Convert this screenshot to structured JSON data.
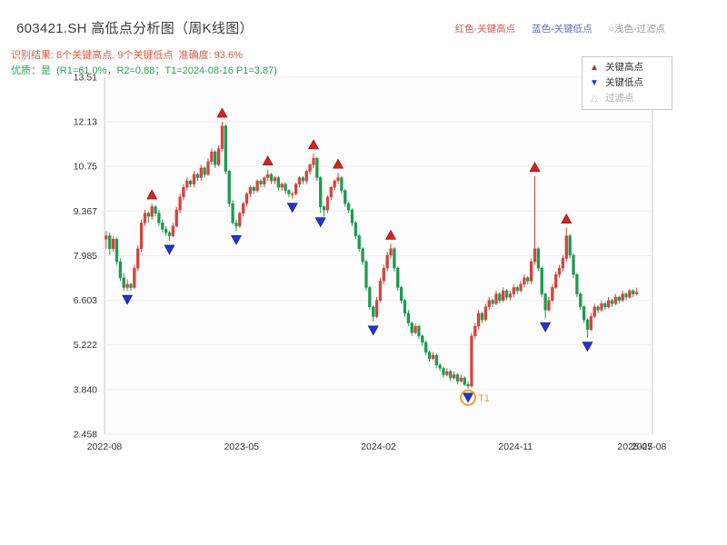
{
  "header": {
    "title": "603421.SH 高低点分析图（周K线图）",
    "legend_top": [
      {
        "label": "红色-关键高点",
        "color": "#d9534f"
      },
      {
        "label": "蓝色-关键低点",
        "color": "#5b6fc0"
      },
      {
        "label": "○浅色-过滤点",
        "color": "#999999"
      }
    ],
    "result_line": "识别结果: 8个关键高点, 9个关键低点  准确度: 93.6%",
    "result_color": "#e0593f",
    "quality_line": "优质：是  (R1=61.0%，R2=0.88；T1=2024-08-16 P1=3.87)",
    "quality_color": "#2ba14f"
  },
  "legend_box": {
    "items": [
      {
        "label": "关键高点",
        "marker": "▲",
        "color": "#d62421"
      },
      {
        "label": "关键低点",
        "marker": "▼",
        "color": "#2435cf"
      },
      {
        "label": "过滤点",
        "marker": "△",
        "color": "#bbbbbb"
      }
    ]
  },
  "chart_data": {
    "type": "candlestick",
    "title": "603421.SH 高低点分析图（周K线图）",
    "ylim": [
      2.458,
      13.51
    ],
    "xlim": [
      0,
      156
    ],
    "grid": "horizontal-faint",
    "y_ticks": [
      {
        "value": 13.51,
        "label": "13.51"
      },
      {
        "value": 12.13,
        "label": "12.13"
      },
      {
        "value": 10.75,
        "label": "10.75"
      },
      {
        "value": 9.367,
        "label": "9.367"
      },
      {
        "value": 7.985,
        "label": "7.985"
      },
      {
        "value": 6.603,
        "label": "6.603"
      },
      {
        "value": 5.222,
        "label": "5.222"
      },
      {
        "value": 3.84,
        "label": "3.840"
      },
      {
        "value": 2.458,
        "label": "2.458"
      }
    ],
    "x_ticks": [
      {
        "week": 0,
        "label": "2022-08"
      },
      {
        "week": 39,
        "label": "2023-05"
      },
      {
        "week": 78,
        "label": "2024-02"
      },
      {
        "week": 117,
        "label": "2024-11"
      },
      {
        "week": 151,
        "label": "2025-07"
      },
      {
        "week": 155,
        "label": "2025-08"
      }
    ],
    "colors": {
      "up": "#d8423c",
      "down": "#1d9a50",
      "high_marker": "#d62421",
      "low_marker": "#2435cf",
      "t1": "#f0a028"
    },
    "candles": [
      [
        8.5,
        8.75,
        8.2,
        8.6
      ],
      [
        8.6,
        8.7,
        8.0,
        8.2
      ],
      [
        8.2,
        8.6,
        8.1,
        8.5
      ],
      [
        8.5,
        8.55,
        7.7,
        7.8
      ],
      [
        7.8,
        7.9,
        7.2,
        7.3
      ],
      [
        7.3,
        7.45,
        6.9,
        7.0
      ],
      [
        7.0,
        7.25,
        6.9,
        7.1
      ],
      [
        7.1,
        7.15,
        6.9,
        7.0
      ],
      [
        7.0,
        7.7,
        6.95,
        7.6
      ],
      [
        7.6,
        8.3,
        7.5,
        8.2
      ],
      [
        8.2,
        9.1,
        8.1,
        9.0
      ],
      [
        9.0,
        9.4,
        8.9,
        9.3
      ],
      [
        9.3,
        9.35,
        9.0,
        9.2
      ],
      [
        9.2,
        9.6,
        9.1,
        9.5
      ],
      [
        9.5,
        9.55,
        9.2,
        9.3
      ],
      [
        9.3,
        9.4,
        8.9,
        9.0
      ],
      [
        9.0,
        9.1,
        8.7,
        8.8
      ],
      [
        8.8,
        8.9,
        8.6,
        8.7
      ],
      [
        8.7,
        8.75,
        8.45,
        8.6
      ],
      [
        8.6,
        9.0,
        8.55,
        8.9
      ],
      [
        8.9,
        9.5,
        8.85,
        9.4
      ],
      [
        9.4,
        9.9,
        9.3,
        9.8
      ],
      [
        9.8,
        10.2,
        9.7,
        10.1
      ],
      [
        10.1,
        10.4,
        10.0,
        10.3
      ],
      [
        10.3,
        10.35,
        10.1,
        10.2
      ],
      [
        10.2,
        10.6,
        10.1,
        10.5
      ],
      [
        10.5,
        10.55,
        10.3,
        10.4
      ],
      [
        10.4,
        10.8,
        10.3,
        10.7
      ],
      [
        10.7,
        10.75,
        10.4,
        10.5
      ],
      [
        10.5,
        11.0,
        10.45,
        10.9
      ],
      [
        10.9,
        11.3,
        10.8,
        11.2
      ],
      [
        11.2,
        11.25,
        10.7,
        10.8
      ],
      [
        10.8,
        11.4,
        10.75,
        11.3
      ],
      [
        11.3,
        12.13,
        11.2,
        12.0
      ],
      [
        12.0,
        12.05,
        10.5,
        10.6
      ],
      [
        10.6,
        10.65,
        9.5,
        9.6
      ],
      [
        9.6,
        9.7,
        8.95,
        9.0
      ],
      [
        9.0,
        9.1,
        8.75,
        8.9
      ],
      [
        8.9,
        9.35,
        8.85,
        9.3
      ],
      [
        9.3,
        9.65,
        9.2,
        9.6
      ],
      [
        9.6,
        9.95,
        9.5,
        9.9
      ],
      [
        9.9,
        10.15,
        9.8,
        10.1
      ],
      [
        10.1,
        10.15,
        9.9,
        10.0
      ],
      [
        10.0,
        10.35,
        9.95,
        10.3
      ],
      [
        10.3,
        10.35,
        10.1,
        10.2
      ],
      [
        10.2,
        10.45,
        10.1,
        10.4
      ],
      [
        10.4,
        10.65,
        10.3,
        10.5
      ],
      [
        10.5,
        10.55,
        10.2,
        10.3
      ],
      [
        10.3,
        10.45,
        10.2,
        10.4
      ],
      [
        10.4,
        10.45,
        10.0,
        10.1
      ],
      [
        10.1,
        10.25,
        10.0,
        10.2
      ],
      [
        10.2,
        10.25,
        9.9,
        10.0
      ],
      [
        10.0,
        10.05,
        9.8,
        9.9
      ],
      [
        9.9,
        9.95,
        9.75,
        9.9
      ],
      [
        9.9,
        10.25,
        9.85,
        10.2
      ],
      [
        10.2,
        10.45,
        10.1,
        10.4
      ],
      [
        10.4,
        10.45,
        10.2,
        10.3
      ],
      [
        10.3,
        10.65,
        10.2,
        10.6
      ],
      [
        10.6,
        10.85,
        10.5,
        10.8
      ],
      [
        10.8,
        11.15,
        10.7,
        11.0
      ],
      [
        11.0,
        11.05,
        10.3,
        10.4
      ],
      [
        10.4,
        10.45,
        9.3,
        9.5
      ],
      [
        9.5,
        9.55,
        9.2,
        9.4
      ],
      [
        9.4,
        9.85,
        9.3,
        9.8
      ],
      [
        9.8,
        10.15,
        9.7,
        10.1
      ],
      [
        10.1,
        10.35,
        10.0,
        10.3
      ],
      [
        10.3,
        10.55,
        10.2,
        10.4
      ],
      [
        10.4,
        10.45,
        9.9,
        10.0
      ],
      [
        10.0,
        10.05,
        9.5,
        9.6
      ],
      [
        9.6,
        9.65,
        9.3,
        9.4
      ],
      [
        9.4,
        9.45,
        8.9,
        9.0
      ],
      [
        9.0,
        9.05,
        8.5,
        8.6
      ],
      [
        8.6,
        8.65,
        8.1,
        8.2
      ],
      [
        8.2,
        8.25,
        7.7,
        7.8
      ],
      [
        7.8,
        7.85,
        6.9,
        7.0
      ],
      [
        7.0,
        7.05,
        6.3,
        6.4
      ],
      [
        6.4,
        6.45,
        5.95,
        6.1
      ],
      [
        6.1,
        6.7,
        6.05,
        6.6
      ],
      [
        6.6,
        7.3,
        6.55,
        7.2
      ],
      [
        7.2,
        7.7,
        7.1,
        7.6
      ],
      [
        7.6,
        8.1,
        7.5,
        8.0
      ],
      [
        8.0,
        8.35,
        7.9,
        8.2
      ],
      [
        8.2,
        8.25,
        7.5,
        7.6
      ],
      [
        7.6,
        7.65,
        6.9,
        7.0
      ],
      [
        7.0,
        7.05,
        6.5,
        6.6
      ],
      [
        6.6,
        6.65,
        6.1,
        6.2
      ],
      [
        6.2,
        6.3,
        5.8,
        5.9
      ],
      [
        5.9,
        5.95,
        5.5,
        5.6
      ],
      [
        5.6,
        5.9,
        5.55,
        5.8
      ],
      [
        5.8,
        5.85,
        5.4,
        5.5
      ],
      [
        5.5,
        5.55,
        5.2,
        5.3
      ],
      [
        5.3,
        5.35,
        4.9,
        5.0
      ],
      [
        5.0,
        5.05,
        4.7,
        4.8
      ],
      [
        4.8,
        5.0,
        4.75,
        4.9
      ],
      [
        4.9,
        4.95,
        4.5,
        4.6
      ],
      [
        4.6,
        4.65,
        4.4,
        4.5
      ],
      [
        4.5,
        4.55,
        4.2,
        4.3
      ],
      [
        4.3,
        4.5,
        4.25,
        4.4
      ],
      [
        4.4,
        4.45,
        4.1,
        4.2
      ],
      [
        4.2,
        4.4,
        4.15,
        4.3
      ],
      [
        4.3,
        4.35,
        4.0,
        4.1
      ],
      [
        4.1,
        4.3,
        4.05,
        4.2
      ],
      [
        4.2,
        4.25,
        3.95,
        4.0
      ],
      [
        4.0,
        4.1,
        3.87,
        3.95
      ],
      [
        3.95,
        5.6,
        3.9,
        5.5
      ],
      [
        5.5,
        5.9,
        5.4,
        5.8
      ],
      [
        5.8,
        6.3,
        5.7,
        6.2
      ],
      [
        6.2,
        6.25,
        5.9,
        6.0
      ],
      [
        6.0,
        6.5,
        5.95,
        6.4
      ],
      [
        6.4,
        6.7,
        6.3,
        6.6
      ],
      [
        6.6,
        6.65,
        6.4,
        6.5
      ],
      [
        6.5,
        6.9,
        6.45,
        6.8
      ],
      [
        6.8,
        6.85,
        6.5,
        6.6
      ],
      [
        6.6,
        7.0,
        6.55,
        6.9
      ],
      [
        6.9,
        6.95,
        6.6,
        6.7
      ],
      [
        6.7,
        6.9,
        6.6,
        6.8
      ],
      [
        6.8,
        7.1,
        6.7,
        7.0
      ],
      [
        7.0,
        7.05,
        6.8,
        6.9
      ],
      [
        6.9,
        7.2,
        6.85,
        7.1
      ],
      [
        7.1,
        7.4,
        7.0,
        7.3
      ],
      [
        7.3,
        7.35,
        7.1,
        7.2
      ],
      [
        7.2,
        7.9,
        7.1,
        7.8
      ],
      [
        7.8,
        10.45,
        7.7,
        8.2
      ],
      [
        8.2,
        8.25,
        7.5,
        7.6
      ],
      [
        7.6,
        7.65,
        6.7,
        6.8
      ],
      [
        6.8,
        6.85,
        6.05,
        6.3
      ],
      [
        6.3,
        6.7,
        6.25,
        6.6
      ],
      [
        6.6,
        7.1,
        6.55,
        7.0
      ],
      [
        7.0,
        7.5,
        6.95,
        7.4
      ],
      [
        7.4,
        7.7,
        7.3,
        7.6
      ],
      [
        7.6,
        8.0,
        7.5,
        7.9
      ],
      [
        7.9,
        8.85,
        7.8,
        8.6
      ],
      [
        8.6,
        8.65,
        7.9,
        8.0
      ],
      [
        8.0,
        8.05,
        7.3,
        7.4
      ],
      [
        7.4,
        7.45,
        6.7,
        6.8
      ],
      [
        6.8,
        6.85,
        6.3,
        6.4
      ],
      [
        6.4,
        6.45,
        5.9,
        6.0
      ],
      [
        6.0,
        6.05,
        5.45,
        5.7
      ],
      [
        5.7,
        6.2,
        5.65,
        6.1
      ],
      [
        6.1,
        6.5,
        6.05,
        6.4
      ],
      [
        6.4,
        6.45,
        6.2,
        6.3
      ],
      [
        6.3,
        6.6,
        6.25,
        6.5
      ],
      [
        6.5,
        6.55,
        6.3,
        6.4
      ],
      [
        6.4,
        6.7,
        6.35,
        6.6
      ],
      [
        6.6,
        6.65,
        6.4,
        6.5
      ],
      [
        6.5,
        6.8,
        6.45,
        6.7
      ],
      [
        6.7,
        6.75,
        6.5,
        6.6
      ],
      [
        6.6,
        6.9,
        6.55,
        6.8
      ],
      [
        6.8,
        6.85,
        6.6,
        6.7
      ],
      [
        6.7,
        6.95,
        6.65,
        6.9
      ],
      [
        6.9,
        6.95,
        6.7,
        6.8
      ],
      [
        6.8,
        7.0,
        6.75,
        6.85
      ]
    ],
    "key_highs": [
      {
        "week": 13,
        "price": 9.6
      },
      {
        "week": 33,
        "price": 12.13
      },
      {
        "week": 46,
        "price": 10.65
      },
      {
        "week": 59,
        "price": 11.15
      },
      {
        "week": 66,
        "price": 10.55
      },
      {
        "week": 81,
        "price": 8.35
      },
      {
        "week": 122,
        "price": 10.45
      },
      {
        "week": 131,
        "price": 8.85
      }
    ],
    "key_lows": [
      {
        "week": 6,
        "price": 6.9
      },
      {
        "week": 18,
        "price": 8.45
      },
      {
        "week": 37,
        "price": 8.75
      },
      {
        "week": 53,
        "price": 9.75
      },
      {
        "week": 61,
        "price": 9.3
      },
      {
        "week": 76,
        "price": 5.95
      },
      {
        "week": 103,
        "price": 3.87
      },
      {
        "week": 125,
        "price": 6.05
      },
      {
        "week": 137,
        "price": 5.45
      }
    ],
    "t1": {
      "week": 103,
      "price": 3.87,
      "label": "T1"
    }
  }
}
